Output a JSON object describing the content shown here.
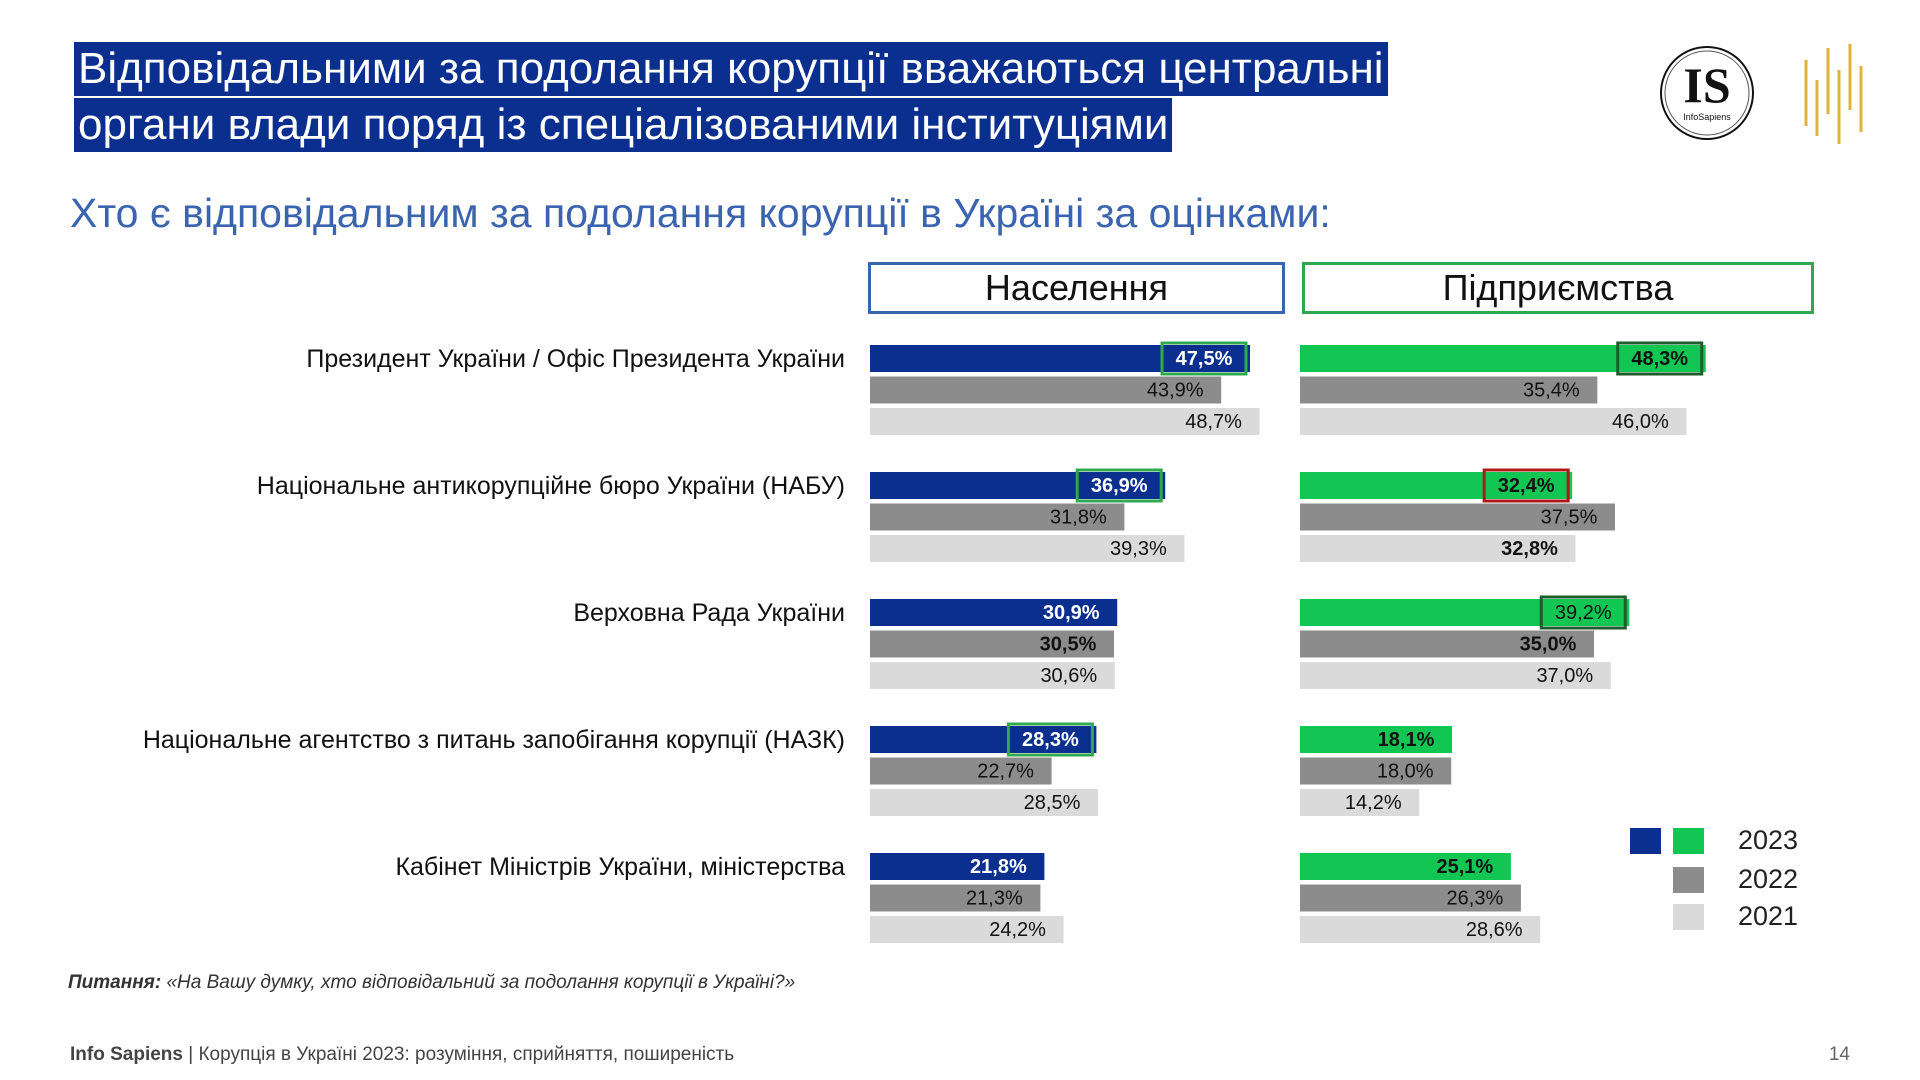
{
  "title": {
    "line1": "Відповідальними за подолання корупції вважаються центральні",
    "line2": "органи влади поряд із спеціалізованими інституціями"
  },
  "subtitle": "Хто є відповідальним за подолання корупції в Україні за оцінками:",
  "logo": {
    "is_text": "IS",
    "is_caption": "InfoSapiens"
  },
  "panels": {
    "population": "Населення",
    "business": "Підприємства"
  },
  "colors": {
    "pop_2023": "#0B2F8E",
    "biz_2023": "#12C653",
    "y2022": "#8C8C8C",
    "y2021": "#DADADA",
    "box_green": "#2FA84F",
    "box_dark_green": "#1B5E2B",
    "box_red": "#B01818"
  },
  "chart_data": [
    {
      "type": "bar",
      "title": "Населення",
      "categories": [
        "Президент України / Офіс Президента України",
        "Національне антикорупційне бюро України (НАБУ)",
        "Верховна Рада України",
        "Національне агентство з питань запобігання корупції (НАЗК)",
        "Кабінет Міністрів України, міністерства"
      ],
      "series": [
        {
          "name": "2023",
          "values": [
            47.5,
            36.9,
            30.9,
            28.3,
            21.8
          ],
          "labels": [
            "47,5%",
            "36,9%",
            "30,9%",
            "28,3%",
            "21,8%"
          ],
          "bold": [
            true,
            true,
            true,
            true,
            true
          ],
          "boxed": [
            "green",
            "green",
            "",
            "green",
            ""
          ]
        },
        {
          "name": "2022",
          "values": [
            43.9,
            31.8,
            30.5,
            22.7,
            21.3
          ],
          "labels": [
            "43,9%",
            "31,8%",
            "30,5%",
            "22,7%",
            "21,3%"
          ],
          "bold": [
            false,
            false,
            true,
            false,
            false
          ],
          "boxed": [
            "",
            "",
            "",
            "",
            ""
          ]
        },
        {
          "name": "2021",
          "values": [
            48.7,
            39.3,
            30.6,
            28.5,
            24.2
          ],
          "labels": [
            "48,7%",
            "39,3%",
            "30,6%",
            "28,5%",
            "24,2%"
          ],
          "bold": [
            false,
            false,
            false,
            false,
            false
          ],
          "boxed": [
            "",
            "",
            "",
            "",
            ""
          ]
        }
      ]
    },
    {
      "type": "bar",
      "title": "Підприємства",
      "categories": [
        "Президент України / Офіс Президента України",
        "Національне антикорупційне бюро України (НАБУ)",
        "Верховна Рада України",
        "Національне агентство з питань запобігання корупції (НАЗК)",
        "Кабінет Міністрів України, міністерства"
      ],
      "series": [
        {
          "name": "2023",
          "values": [
            48.3,
            32.4,
            39.2,
            18.1,
            25.1
          ],
          "labels": [
            "48,3%",
            "32,4%",
            "39,2%",
            "18,1%",
            "25,1%"
          ],
          "bold": [
            true,
            true,
            false,
            true,
            true
          ],
          "boxed": [
            "dark_green",
            "red",
            "dark_green",
            "",
            ""
          ]
        },
        {
          "name": "2022",
          "values": [
            35.4,
            37.5,
            35.0,
            18.0,
            26.3
          ],
          "labels": [
            "35,4%",
            "37,5%",
            "35,0%",
            "18,0%",
            "26,3%"
          ],
          "bold": [
            false,
            false,
            true,
            false,
            false
          ],
          "boxed": [
            "",
            "",
            "",
            "",
            ""
          ]
        },
        {
          "name": "2021",
          "values": [
            46.0,
            32.8,
            37.0,
            14.2,
            28.6
          ],
          "labels": [
            "46,0%",
            "32,8%",
            "37,0%",
            "14,2%",
            "28,6%"
          ],
          "bold": [
            false,
            true,
            false,
            false,
            false
          ],
          "boxed": [
            "",
            "",
            "",
            "",
            ""
          ]
        }
      ]
    }
  ],
  "legend": [
    "2023",
    "2022",
    "2021"
  ],
  "question": {
    "prefix": "Питання:",
    "text": "«На Вашу думку, хто відповідальний за подолання корупції в Україні?»"
  },
  "footer": {
    "brand": "Info Sapiens",
    "text": "| Корупція в Україні 2023: розуміння, сприйняття, поширеність"
  },
  "page_number": "14"
}
